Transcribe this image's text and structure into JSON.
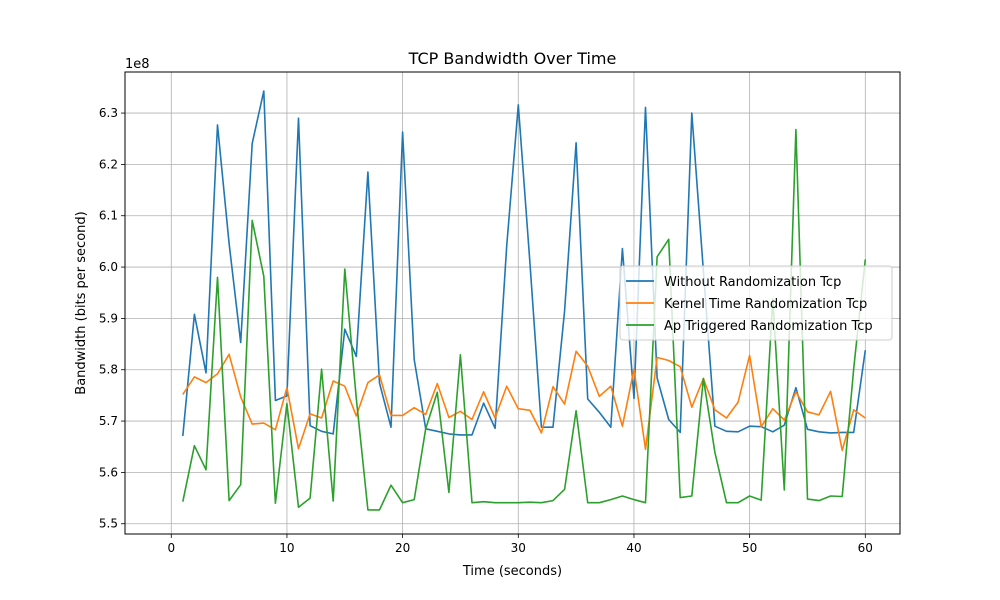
{
  "chart_data": {
    "type": "line",
    "title": "TCP Bandwidth Over Time",
    "xlabel": "Time (seconds)",
    "ylabel": "Bandwidth (bits per second)",
    "y_offset_label": "1e8",
    "xlim": [
      -4,
      63
    ],
    "ylim": [
      5.48,
      6.38
    ],
    "y_scale_note": "values in units of 1e8 bits per second",
    "grid": true,
    "legend_position": "center-right",
    "x_ticks": [
      0,
      10,
      20,
      30,
      40,
      50,
      60
    ],
    "y_ticks": [
      5.5,
      5.6,
      5.7,
      5.8,
      5.9,
      6.0,
      6.1,
      6.2,
      6.3
    ],
    "y_tick_labels": [
      "5.5",
      "5.6",
      "5.7",
      "5.8",
      "5.9",
      "6.0",
      "6.1",
      "6.2",
      "6.3"
    ],
    "x_tick_labels": [
      "0",
      "10",
      "20",
      "30",
      "40",
      "50",
      "60"
    ],
    "x": [
      1,
      2,
      3,
      4,
      5,
      6,
      7,
      8,
      9,
      10,
      11,
      12,
      13,
      14,
      15,
      16,
      17,
      18,
      19,
      20,
      21,
      22,
      23,
      24,
      25,
      26,
      27,
      28,
      29,
      30,
      31,
      32,
      33,
      34,
      35,
      36,
      37,
      38,
      39,
      40,
      41,
      42,
      43,
      44,
      45,
      46,
      47,
      48,
      49,
      50,
      51,
      52,
      53,
      54,
      55,
      56,
      57,
      58,
      59,
      60
    ],
    "series": [
      {
        "name": "Without Randomization Tcp",
        "color": "#1f77b4",
        "values": [
          5.671,
          5.908,
          5.794,
          6.277,
          6.046,
          5.853,
          6.241,
          6.343,
          5.74,
          5.749,
          6.29,
          5.691,
          5.68,
          5.675,
          5.879,
          5.826,
          6.185,
          5.774,
          5.688,
          6.263,
          5.82,
          5.685,
          5.68,
          5.675,
          5.673,
          5.673,
          5.735,
          5.686,
          6.041,
          6.316,
          6.009,
          5.688,
          5.688,
          5.915,
          6.242,
          5.743,
          5.717,
          5.688,
          6.036,
          5.744,
          6.311,
          5.784,
          5.703,
          5.678,
          6.3,
          5.992,
          5.69,
          5.68,
          5.679,
          5.69,
          5.689,
          5.679,
          5.692,
          5.765,
          5.684,
          5.679,
          5.677,
          5.678,
          5.678,
          5.838
        ]
      },
      {
        "name": "Kernel Time Randomization Tcp",
        "color": "#ff7f0e",
        "values": [
          5.752,
          5.786,
          5.775,
          5.792,
          5.83,
          5.747,
          5.694,
          5.696,
          5.683,
          5.765,
          5.646,
          5.714,
          5.706,
          5.778,
          5.768,
          5.71,
          5.775,
          5.79,
          5.711,
          5.711,
          5.726,
          5.713,
          5.773,
          5.707,
          5.719,
          5.703,
          5.757,
          5.706,
          5.768,
          5.724,
          5.721,
          5.677,
          5.767,
          5.733,
          5.836,
          5.807,
          5.748,
          5.768,
          5.69,
          5.801,
          5.645,
          5.824,
          5.818,
          5.806,
          5.727,
          5.783,
          5.722,
          5.706,
          5.737,
          5.828,
          5.689,
          5.724,
          5.702,
          5.757,
          5.718,
          5.712,
          5.758,
          5.643,
          5.722,
          5.706
        ]
      },
      {
        "name": "Ap Triggered Randomization Tcp",
        "color": "#2ca02c",
        "values": [
          5.543,
          5.652,
          5.605,
          5.98,
          5.545,
          5.576,
          6.091,
          5.982,
          5.54,
          5.734,
          5.532,
          5.55,
          5.801,
          5.544,
          5.996,
          5.744,
          5.527,
          5.527,
          5.575,
          5.541,
          5.547,
          5.685,
          5.756,
          5.561,
          5.829,
          5.541,
          5.543,
          5.541,
          5.541,
          5.541,
          5.542,
          5.541,
          5.545,
          5.567,
          5.72,
          5.541,
          5.541,
          5.547,
          5.554,
          5.547,
          5.541,
          6.02,
          6.054,
          5.551,
          5.554,
          5.783,
          5.639,
          5.541,
          5.541,
          5.554,
          5.546,
          5.938,
          5.566,
          6.268,
          5.548,
          5.545,
          5.554,
          5.553,
          5.802,
          6.015
        ]
      }
    ]
  }
}
